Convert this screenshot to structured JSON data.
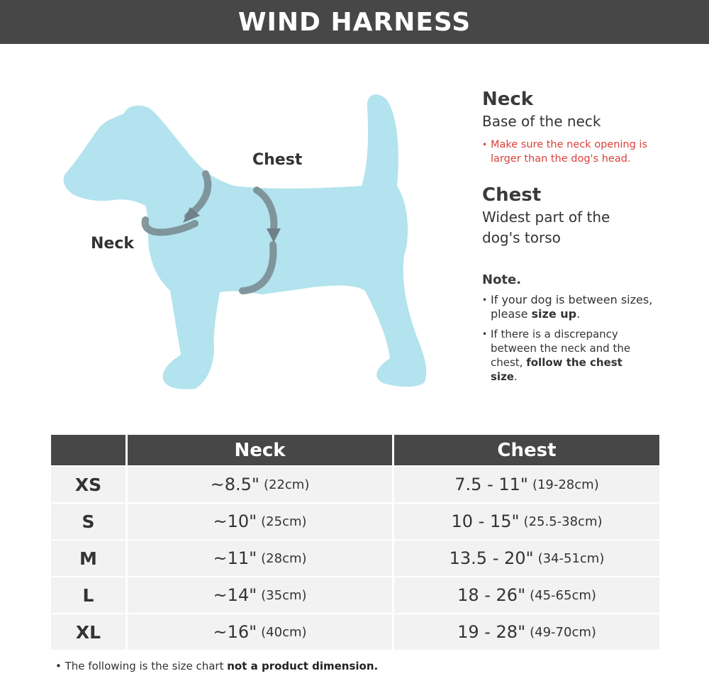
{
  "title": "WIND HARNESS",
  "colors": {
    "header_bg": "#474747",
    "dog_fill": "#b2e3ee",
    "warning": "#d9403a",
    "row_bg": "#f2f2f2"
  },
  "diagram": {
    "chest_label": "Chest",
    "neck_label": "Neck"
  },
  "info": {
    "neck_heading": "Neck",
    "neck_desc": "Base of the neck",
    "neck_warning": "Make sure the neck opening is larger than the dog's head.",
    "chest_heading": "Chest",
    "chest_desc_1": "Widest part of the",
    "chest_desc_2": "dog's torso",
    "note_heading": "Note.",
    "note1_pre": "If your dog is between sizes, please ",
    "note1_bold": "size up",
    "note1_post": ".",
    "note2_pre": "If there is a discrepancy between the neck and the chest, ",
    "note2_bold": "follow the chest size",
    "note2_post": "."
  },
  "table": {
    "headers": [
      "",
      "Neck",
      "Chest"
    ],
    "rows": [
      {
        "size": "XS",
        "neck": "~8.5\"",
        "neck_cm": "(22cm)",
        "chest": "7.5 - 11\"",
        "chest_cm": "(19-28cm)"
      },
      {
        "size": "S",
        "neck": "~10\"",
        "neck_cm": "(25cm)",
        "chest": "10 - 15\"",
        "chest_cm": "(25.5-38cm)"
      },
      {
        "size": "M",
        "neck": "~11\"",
        "neck_cm": "(28cm)",
        "chest": "13.5 - 20\"",
        "chest_cm": "(34-51cm)"
      },
      {
        "size": "L",
        "neck": "~14\"",
        "neck_cm": "(35cm)",
        "chest": "18 - 26\"",
        "chest_cm": "(45-65cm)"
      },
      {
        "size": "XL",
        "neck": "~16\"",
        "neck_cm": "(40cm)",
        "chest": "19 - 28\"",
        "chest_cm": "(49-70cm)"
      }
    ]
  },
  "footnote": {
    "pre": "The following is the size chart ",
    "bold": "not a product dimension."
  }
}
